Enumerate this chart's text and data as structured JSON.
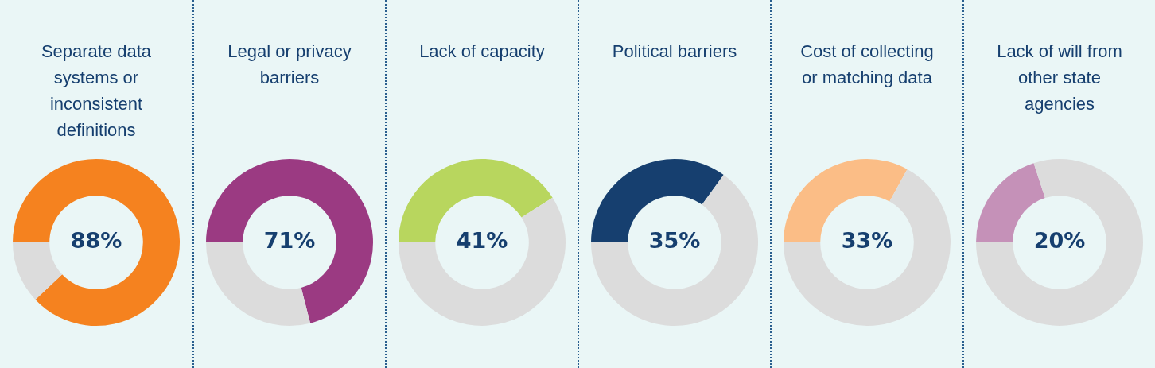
{
  "chart_data": [
    {
      "type": "donut",
      "title": "Separate data systems or inconsistent definitions",
      "categories": [
        null,
        null
      ],
      "values": [
        88,
        12
      ],
      "colors": [
        "#f5821f",
        "#dcdcdc"
      ],
      "annotations": [
        "88%"
      ]
    },
    {
      "type": "donut",
      "title": "Legal or privacy barriers",
      "categories": [
        null,
        null
      ],
      "values": [
        71,
        29
      ],
      "colors": [
        "#9b3a82",
        "#dcdcdc"
      ],
      "annotations": [
        "71%"
      ]
    },
    {
      "type": "donut",
      "title": "Lack of capacity",
      "categories": [
        null,
        null
      ],
      "values": [
        41,
        59
      ],
      "colors": [
        "#b8d65e",
        "#dcdcdc"
      ],
      "annotations": [
        "41%"
      ]
    },
    {
      "type": "donut",
      "title": "Political barriers",
      "categories": [
        null,
        null
      ],
      "values": [
        35,
        65
      ],
      "colors": [
        "#163f6f",
        "#dcdcdc"
      ],
      "annotations": [
        "35%"
      ]
    },
    {
      "type": "donut",
      "title": "Cost of collecting or matching data",
      "categories": [
        null,
        null
      ],
      "values": [
        33,
        67
      ],
      "colors": [
        "#fbbd86",
        "#dcdcdc"
      ],
      "annotations": [
        "33%"
      ]
    },
    {
      "type": "donut",
      "title": "Lack of will from other state agencies",
      "categories": [
        null,
        null
      ],
      "values": [
        20,
        80
      ],
      "colors": [
        "#c591b8",
        "#dcdcdc"
      ],
      "annotations": [
        "20%"
      ]
    }
  ]
}
